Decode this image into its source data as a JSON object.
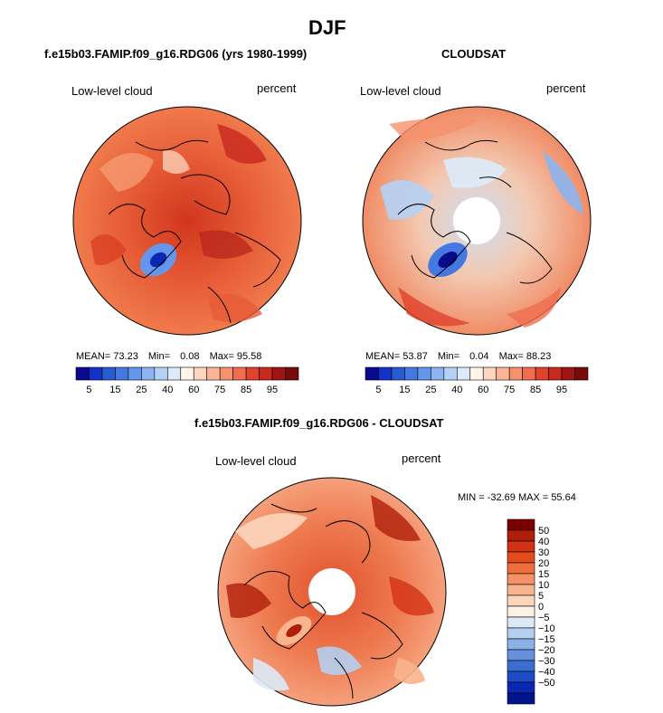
{
  "title": "DJF",
  "panels": {
    "model": {
      "title": "f.e15b03.FAMIP.f09_g16.RDG06 (yrs 1980-1999)",
      "variable": "Low-level cloud",
      "units": "percent",
      "mean_label": "MEAN=",
      "mean": "73.23",
      "min_label": "Min=",
      "min": "0.08",
      "max_label": "Max=",
      "max": "95.58"
    },
    "obs": {
      "title": "CLOUDSAT",
      "variable": "Low-level cloud",
      "units": "percent",
      "mean_label": "MEAN=",
      "mean": "53.87",
      "min_label": "Min=",
      "min": "0.04",
      "max_label": "Max=",
      "max": "88.23"
    },
    "diff": {
      "title": "f.e15b03.FAMIP.f09_g16.RDG06 - CLOUDSAT",
      "variable": "Low-level cloud",
      "units": "percent",
      "minmax": "MIN = -32.69 MAX =  55.64"
    }
  },
  "colorbar_abs": {
    "colors": [
      "#0a0a8c",
      "#1432c8",
      "#285ad2",
      "#4678e1",
      "#6496eb",
      "#8cb4f0",
      "#b4d2f5",
      "#dcebfa",
      "#fff5eb",
      "#fdd5c0",
      "#fbb496",
      "#f6916e",
      "#f06e50",
      "#e1412d",
      "#c8281e",
      "#a01414",
      "#780a0a"
    ],
    "ticks": [
      "5",
      "15",
      "25",
      "40",
      "60",
      "75",
      "85",
      "95"
    ]
  },
  "colorbar_diff": {
    "colors": [
      "#7a0000",
      "#b01e0a",
      "#d23214",
      "#e64b1e",
      "#f06e3c",
      "#f59164",
      "#f8b48c",
      "#fcd5bc",
      "#fff0e6",
      "#dce9f7",
      "#b4cff0",
      "#8cb0e8",
      "#6490dc",
      "#3c6ed2",
      "#1e4bc8",
      "#0a28b4",
      "#00148c"
    ],
    "ticks": [
      "50",
      "40",
      "30",
      "20",
      "15",
      "10",
      "5",
      "0",
      "−5",
      "−10",
      "−15",
      "−20",
      "−30",
      "−40",
      "−50"
    ]
  }
}
